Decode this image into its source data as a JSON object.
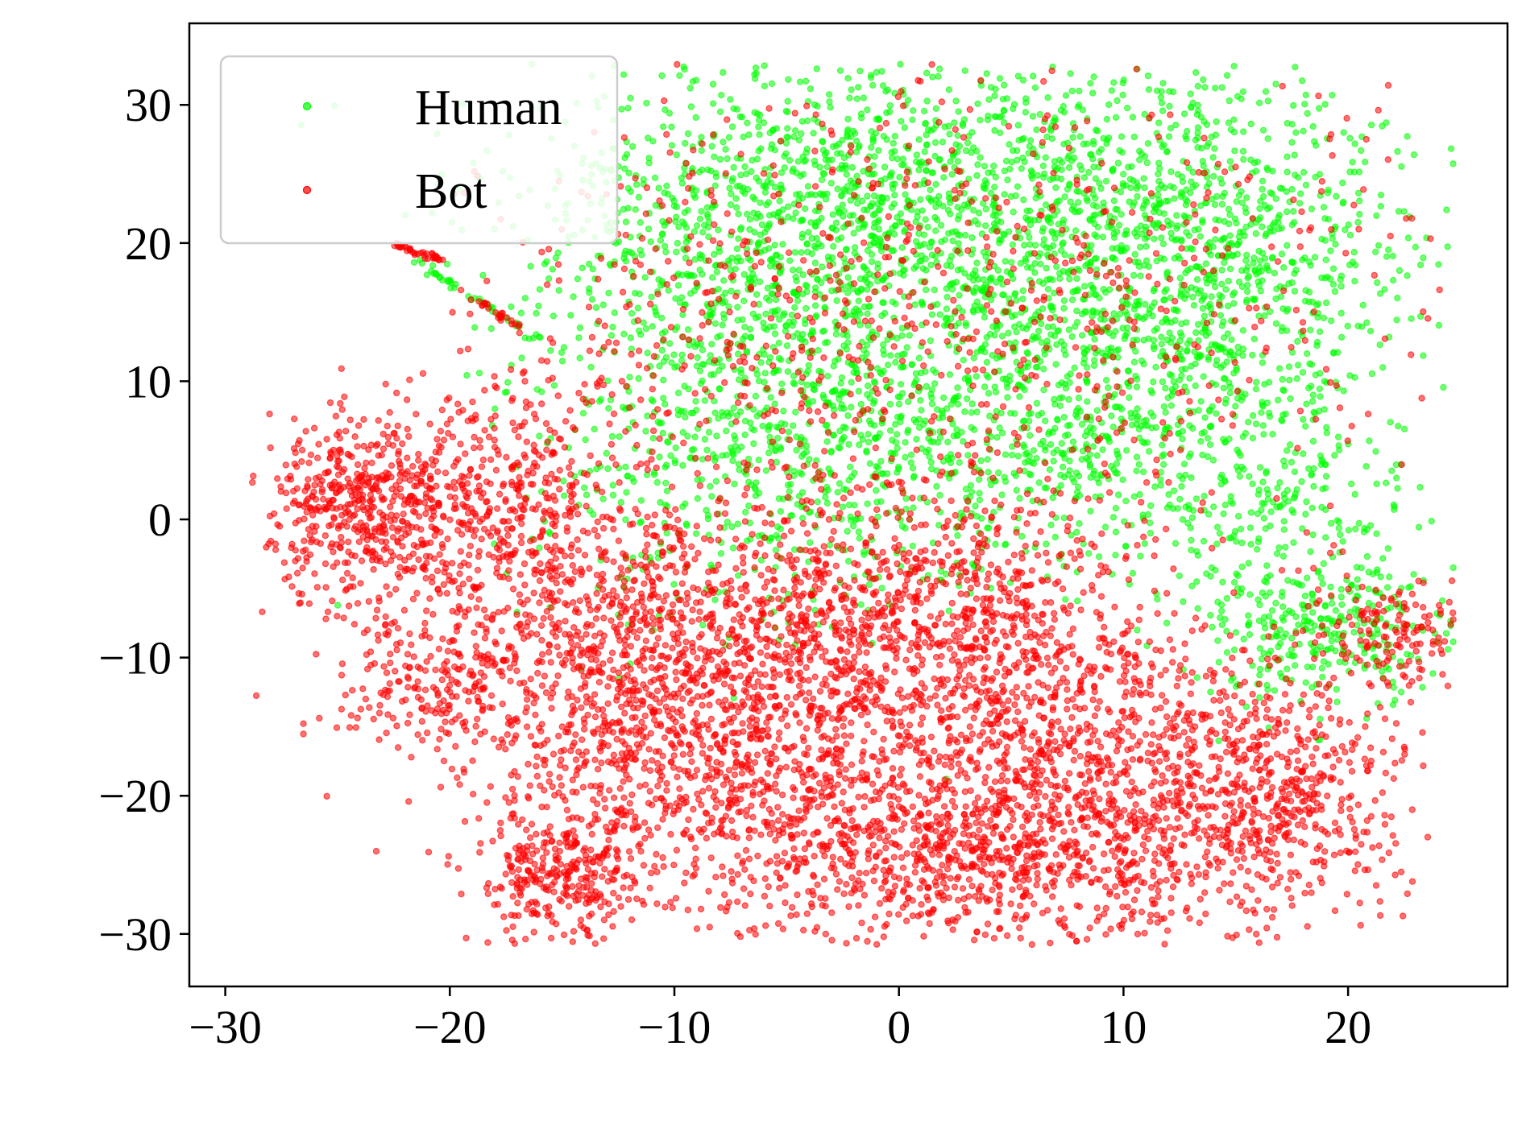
{
  "chart_data": {
    "type": "scatter",
    "title": "",
    "xlabel": "",
    "ylabel": "",
    "xlim": [
      -31.6,
      27.1
    ],
    "ylim": [
      -33.8,
      35.9
    ],
    "x_ticks": [
      -30,
      -20,
      -10,
      0,
      10,
      20
    ],
    "y_ticks": [
      -30,
      -20,
      -10,
      0,
      10,
      20,
      30
    ],
    "x_tick_labels": [
      "−30",
      "−20",
      "−10",
      "0",
      "10",
      "20"
    ],
    "y_tick_labels": [
      "−30",
      "−20",
      "−10",
      "0",
      "10",
      "20",
      "30"
    ],
    "grid": false,
    "legend_position": "top-left",
    "series": [
      {
        "name": "Human",
        "color": "#00ff00",
        "regions": [
          {
            "cx": 0.0,
            "cy": 24.0,
            "sx": 8.0,
            "sy": 5.0,
            "n": 1150
          },
          {
            "cx": 13.0,
            "cy": 18.0,
            "sx": 5.0,
            "sy": 7.0,
            "n": 1050
          },
          {
            "cx": -6.0,
            "cy": 16.0,
            "sx": 5.0,
            "sy": 6.0,
            "n": 650
          },
          {
            "cx": 5.0,
            "cy": 10.0,
            "sx": 5.0,
            "sy": 6.0,
            "n": 500
          },
          {
            "cx": 0.0,
            "cy": 4.0,
            "sx": 6.0,
            "sy": 5.0,
            "n": 420
          },
          {
            "cx": 19.0,
            "cy": -8.0,
            "sx": 3.0,
            "sy": 3.0,
            "n": 330
          },
          {
            "cx": -8.0,
            "cy": 4.0,
            "sx": 5.0,
            "sy": 6.0,
            "n": 300
          },
          {
            "cx": 16.0,
            "cy": 2.0,
            "sx": 3.5,
            "sy": 4.0,
            "n": 240
          }
        ],
        "lines": [
          {
            "from": [
              -21.5,
              18.7
            ],
            "to": [
              -16.0,
              13.0
            ],
            "n": 45
          }
        ]
      },
      {
        "name": "Bot",
        "color": "#ff0000",
        "regions": [
          {
            "cx": 0.0,
            "cy": -24.0,
            "sx": 5.0,
            "sy": 4.0,
            "n": 800
          },
          {
            "cx": 10.0,
            "cy": -23.0,
            "sx": 5.0,
            "sy": 4.0,
            "n": 700
          },
          {
            "cx": 17.0,
            "cy": -19.0,
            "sx": 3.0,
            "sy": 4.0,
            "n": 400
          },
          {
            "cx": -15.0,
            "cy": -26.0,
            "sx": 2.0,
            "sy": 2.5,
            "n": 320
          },
          {
            "cx": -13.0,
            "cy": -8.0,
            "sx": 5.0,
            "sy": 5.0,
            "n": 850
          },
          {
            "cx": -3.0,
            "cy": -9.0,
            "sx": 5.0,
            "sy": 5.0,
            "n": 800
          },
          {
            "cx": -10.0,
            "cy": -18.0,
            "sx": 4.0,
            "sy": 4.0,
            "n": 500
          },
          {
            "cx": 6.0,
            "cy": -13.0,
            "sx": 5.0,
            "sy": 4.0,
            "n": 550
          },
          {
            "cx": -24.0,
            "cy": 1.0,
            "sx": 2.0,
            "sy": 3.0,
            "n": 450
          },
          {
            "cx": -18.0,
            "cy": 2.0,
            "sx": 3.0,
            "sy": 4.0,
            "n": 380
          },
          {
            "cx": -21.0,
            "cy": -12.0,
            "sx": 2.0,
            "sy": 3.0,
            "n": 160
          },
          {
            "cx": -4.0,
            "cy": 14.0,
            "sx": 7.0,
            "sy": 8.0,
            "n": 500
          },
          {
            "cx": 9.0,
            "cy": 14.0,
            "sx": 8.0,
            "sy": 10.0,
            "n": 380
          },
          {
            "cx": 22.0,
            "cy": -8.0,
            "sx": 2.0,
            "sy": 2.0,
            "n": 150
          },
          {
            "cx": 4.0,
            "cy": -5.0,
            "sx": 4.0,
            "sy": 4.0,
            "n": 250
          }
        ],
        "lines": [
          {
            "from": [
              -22.5,
              19.8
            ],
            "to": [
              -20.3,
              18.8
            ],
            "n": 40
          },
          {
            "from": [
              -19.5,
              16.5
            ],
            "to": [
              -17.0,
              14.0
            ],
            "n": 25
          }
        ]
      }
    ]
  }
}
